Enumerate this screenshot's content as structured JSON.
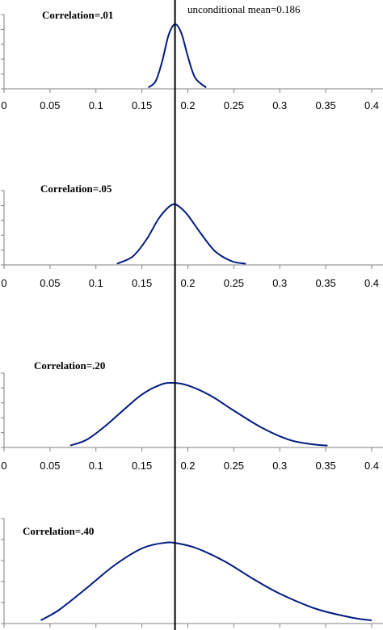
{
  "mean_label": "unconditional mean=0.186",
  "chart_data": [
    {
      "type": "line",
      "title": "Correlation=.01",
      "xlim": [
        0,
        0.4
      ],
      "xticks": [
        "0",
        "0.05",
        "0.1",
        "0.15",
        "0.2",
        "0.25",
        "0.3",
        "0.35",
        "0.4"
      ],
      "mean": 0.186,
      "x": [
        0.157,
        0.165,
        0.172,
        0.179,
        0.186,
        0.193,
        0.2,
        0.208,
        0.22
      ],
      "values": [
        0.02,
        0.12,
        0.42,
        0.83,
        1.0,
        0.86,
        0.5,
        0.17,
        0.02
      ]
    },
    {
      "type": "line",
      "title": "Correlation=.05",
      "xlim": [
        0,
        0.4
      ],
      "xticks": [
        "0",
        "0.05",
        "0.1",
        "0.15",
        "0.2",
        "0.25",
        "0.3",
        "0.35",
        "0.4"
      ],
      "mean": 0.186,
      "x": [
        0.123,
        0.14,
        0.155,
        0.168,
        0.178,
        0.184,
        0.19,
        0.2,
        0.215,
        0.23,
        0.248,
        0.263
      ],
      "values": [
        0.02,
        0.14,
        0.42,
        0.76,
        0.94,
        1.0,
        0.97,
        0.82,
        0.5,
        0.22,
        0.06,
        0.02
      ]
    },
    {
      "type": "line",
      "title": "Correlation=.20",
      "xlim": [
        0,
        0.4
      ],
      "xticks": [
        "0",
        "0.05",
        "0.1",
        "0.15",
        "0.2",
        "0.25",
        "0.3",
        "0.35",
        "0.4"
      ],
      "mean": 0.186,
      "x": [
        0.072,
        0.09,
        0.11,
        0.13,
        0.15,
        0.17,
        0.183,
        0.2,
        0.225,
        0.25,
        0.28,
        0.31,
        0.335,
        0.352
      ],
      "values": [
        0.03,
        0.12,
        0.33,
        0.58,
        0.82,
        0.97,
        1.0,
        0.96,
        0.8,
        0.57,
        0.31,
        0.12,
        0.05,
        0.03
      ]
    },
    {
      "type": "line",
      "title": "Correlation=.40",
      "xlim": [
        0,
        0.4
      ],
      "mean": 0.186,
      "x": [
        0.04,
        0.06,
        0.09,
        0.12,
        0.15,
        0.175,
        0.19,
        0.21,
        0.24,
        0.27,
        0.3,
        0.34,
        0.38,
        0.4
      ],
      "values": [
        0.04,
        0.17,
        0.44,
        0.72,
        0.93,
        1.0,
        0.99,
        0.93,
        0.77,
        0.56,
        0.37,
        0.18,
        0.07,
        0.04
      ]
    }
  ]
}
